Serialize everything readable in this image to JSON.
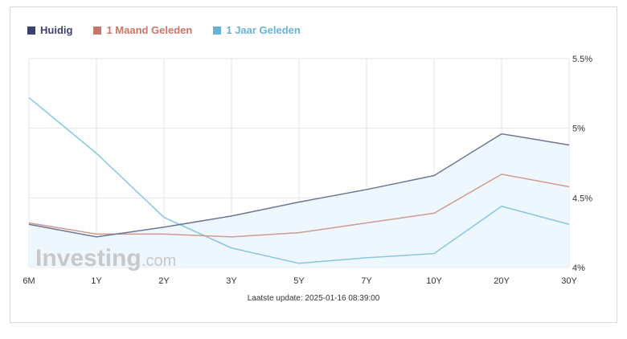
{
  "legend": [
    {
      "label": "Huidig",
      "color": "#3b3f73"
    },
    {
      "label": "1 Maand Geleden",
      "color": "#c9766a"
    },
    {
      "label": "1 Jaar Geleden",
      "color": "#6ab2d4"
    }
  ],
  "footer": "Laatste update: 2025-01-16 08:39:00",
  "watermark": {
    "brand": "Investing",
    "suffix": ".com"
  },
  "chart_data": {
    "type": "line",
    "categories": [
      "6M",
      "1Y",
      "2Y",
      "3Y",
      "5Y",
      "7Y",
      "10Y",
      "20Y",
      "30Y"
    ],
    "series": [
      {
        "name": "Huidig",
        "color": "#6e7593",
        "values": [
          4.31,
          4.22,
          4.29,
          4.37,
          4.47,
          4.56,
          4.66,
          4.96,
          4.88
        ]
      },
      {
        "name": "1 Maand Geleden",
        "color": "#d09a8e",
        "values": [
          4.32,
          4.24,
          4.24,
          4.22,
          4.25,
          4.32,
          4.39,
          4.67,
          4.58
        ]
      },
      {
        "name": "1 Jaar Geleden",
        "color": "#86c8de",
        "values": [
          5.22,
          4.82,
          4.36,
          4.14,
          4.03,
          4.07,
          4.1,
          4.44,
          4.31
        ]
      }
    ],
    "y_ticks": [
      "5.5%",
      "5%",
      "4.5%",
      "4%"
    ],
    "y_tick_values": [
      5.5,
      5.0,
      4.5,
      4.0
    ],
    "ylim": [
      4.0,
      5.5
    ],
    "grid": true,
    "legend_position": "top-left",
    "fill_series": "Huidig",
    "fill_color": "#eef7fd"
  }
}
